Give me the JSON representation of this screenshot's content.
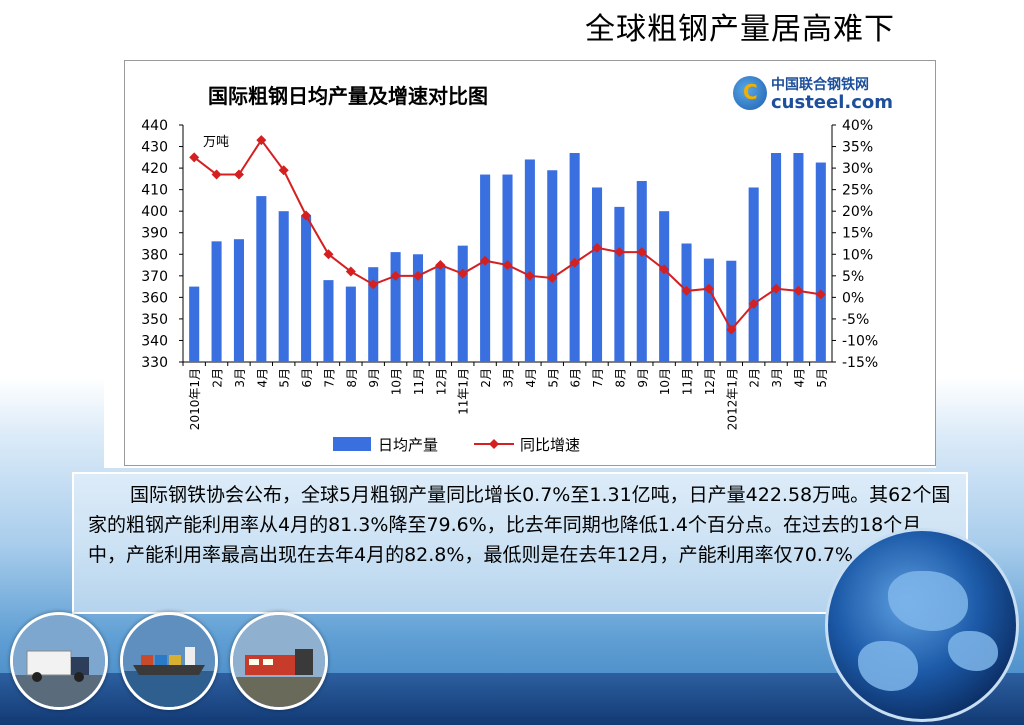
{
  "slide": {
    "title": "全球粗钢产量居高难下",
    "body_text": "国际钢铁协会公布，全球5月粗钢产量同比增长0.7%至1.31亿吨，日产量422.58万吨。其62个国家的粗钢产能利用率从4月的81.3%降至79.6%，比去年同期也降低1.4个百分点。在过去的18个月中，产能利用率最高出现在去年4月的82.8%，最低则是在去年12月，产能利用率仅70.7%。"
  },
  "logo": {
    "cn_text": "中国联合钢铁网",
    "en_text": "custeel.com"
  },
  "chart_data": {
    "type": "bar+line",
    "title": "国际粗钢日均产量及增速对比图",
    "ylabel_left": "万吨",
    "ylim_left": [
      330,
      440
    ],
    "yticks_left": [
      330,
      340,
      350,
      360,
      370,
      380,
      390,
      400,
      410,
      420,
      430,
      440
    ],
    "ylim_right": [
      -15,
      40
    ],
    "yticks_right": [
      "-15%",
      "-10%",
      "-5%",
      "0%",
      "5%",
      "10%",
      "15%",
      "20%",
      "25%",
      "30%",
      "35%",
      "40%"
    ],
    "categories": [
      "2010年1月",
      "2月",
      "3月",
      "4月",
      "5月",
      "6月",
      "7月",
      "8月",
      "9月",
      "10月",
      "11月",
      "12月",
      "11年1月",
      "2月",
      "3月",
      "4月",
      "5月",
      "6月",
      "7月",
      "8月",
      "9月",
      "10月",
      "11月",
      "12月",
      "2012年1月",
      "2月",
      "3月",
      "4月",
      "5月"
    ],
    "series": [
      {
        "name": "日均产量",
        "type": "bar",
        "color": "#3a6fe0",
        "values": [
          365,
          386,
          387,
          407,
          400,
          398,
          368,
          365,
          374,
          381,
          380,
          375,
          384,
          417,
          417,
          424,
          419,
          427,
          411,
          402,
          414,
          400,
          385,
          378,
          377,
          411,
          427,
          427,
          422.58
        ]
      },
      {
        "name": "同比增速",
        "type": "line",
        "color": "#d42020",
        "values": [
          32.5,
          28.5,
          28.5,
          36.5,
          29.5,
          19,
          10,
          6,
          3,
          5,
          5,
          7.5,
          5.5,
          8.5,
          7.5,
          5,
          4.5,
          8,
          11.5,
          10.5,
          10.5,
          6.5,
          1.5,
          2,
          -7.5,
          -1.5,
          2,
          1.5,
          0.7
        ]
      }
    ],
    "legend_position": "bottom",
    "grid": false
  },
  "colors": {
    "bar": "#3a6fe0",
    "line": "#d42020",
    "footer": "#1d4a8a"
  },
  "photos": [
    {
      "icon": "truck-icon"
    },
    {
      "icon": "cargo-ship-icon"
    },
    {
      "icon": "train-icon"
    }
  ]
}
